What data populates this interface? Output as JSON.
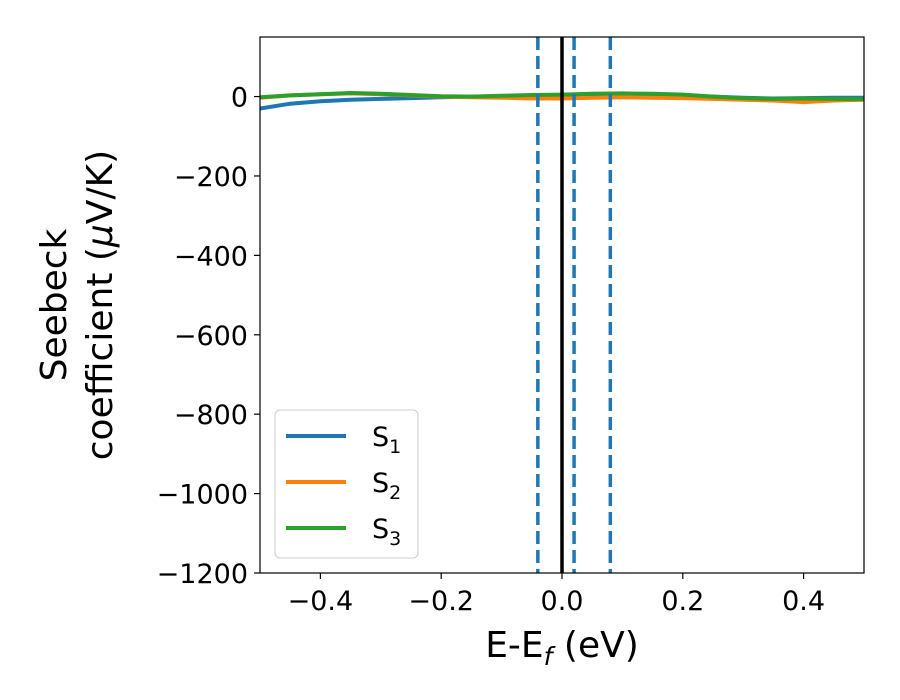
{
  "chart_data": {
    "type": "line",
    "xlabel": "E-E",
    "xlabel_sub": "f",
    "xlabel_unit": " (eV)",
    "ylabel_line1": "Seebeck",
    "ylabel_line2": "coefficient  (",
    "ylabel_mu": "μ",
    "ylabel_unit": "V/K)",
    "xlim": [
      -0.5,
      0.5
    ],
    "ylim": [
      -1200,
      150
    ],
    "xticks": [
      -0.4,
      -0.2,
      0.0,
      0.2,
      0.4
    ],
    "xtick_labels": [
      "−0.4",
      "−0.2",
      "0.0",
      "0.2",
      "0.4"
    ],
    "yticks": [
      0,
      -200,
      -400,
      -600,
      -800,
      -1000,
      -1200
    ],
    "ytick_labels": [
      "0",
      "−200",
      "−400",
      "−600",
      "−800",
      "−1000",
      "−1200"
    ],
    "legend_position": "lower-left",
    "vlines": [
      {
        "x": 0.0,
        "style": "solid",
        "color": "#000000"
      },
      {
        "x": -0.04,
        "style": "dashed",
        "color": "#1f77b4"
      },
      {
        "x": 0.02,
        "style": "dashed",
        "color": "#1f77b4"
      },
      {
        "x": 0.08,
        "style": "dashed",
        "color": "#1f77b4"
      }
    ],
    "series": [
      {
        "name": "S",
        "sub": "1",
        "color": "#1f77b4",
        "x": [
          -0.5,
          -0.45,
          -0.4,
          -0.35,
          -0.3,
          -0.25,
          -0.2,
          -0.15,
          -0.1,
          -0.05,
          0.0,
          0.05,
          0.1,
          0.15,
          0.2,
          0.25,
          0.3,
          0.35,
          0.4,
          0.45,
          0.5
        ],
        "y": [
          -30,
          -18,
          -12,
          -8,
          -6,
          -4,
          -2,
          0,
          1,
          2,
          2,
          3,
          4,
          3,
          2,
          0,
          -3,
          -5,
          -4,
          -3,
          -3
        ]
      },
      {
        "name": "S",
        "sub": "2",
        "color": "#ff7f0e",
        "x": [
          -0.5,
          -0.45,
          -0.4,
          -0.35,
          -0.3,
          -0.25,
          -0.2,
          -0.15,
          -0.1,
          -0.05,
          0.0,
          0.05,
          0.1,
          0.15,
          0.2,
          0.25,
          0.3,
          0.35,
          0.4,
          0.45,
          0.5
        ],
        "y": [
          -3,
          3,
          6,
          8,
          6,
          3,
          0,
          -2,
          -3,
          -5,
          -5,
          -3,
          -2,
          -3,
          -4,
          -6,
          -8,
          -10,
          -14,
          -10,
          -8
        ]
      },
      {
        "name": "S",
        "sub": "3",
        "color": "#2ca02c",
        "x": [
          -0.5,
          -0.45,
          -0.4,
          -0.35,
          -0.3,
          -0.25,
          -0.2,
          -0.15,
          -0.1,
          -0.05,
          0.0,
          0.05,
          0.1,
          0.15,
          0.2,
          0.25,
          0.3,
          0.35,
          0.4,
          0.45,
          0.5
        ],
        "y": [
          -2,
          3,
          6,
          9,
          7,
          4,
          1,
          0,
          2,
          4,
          5,
          7,
          8,
          7,
          5,
          0,
          -4,
          -6,
          -5,
          -6,
          -7
        ]
      }
    ]
  }
}
